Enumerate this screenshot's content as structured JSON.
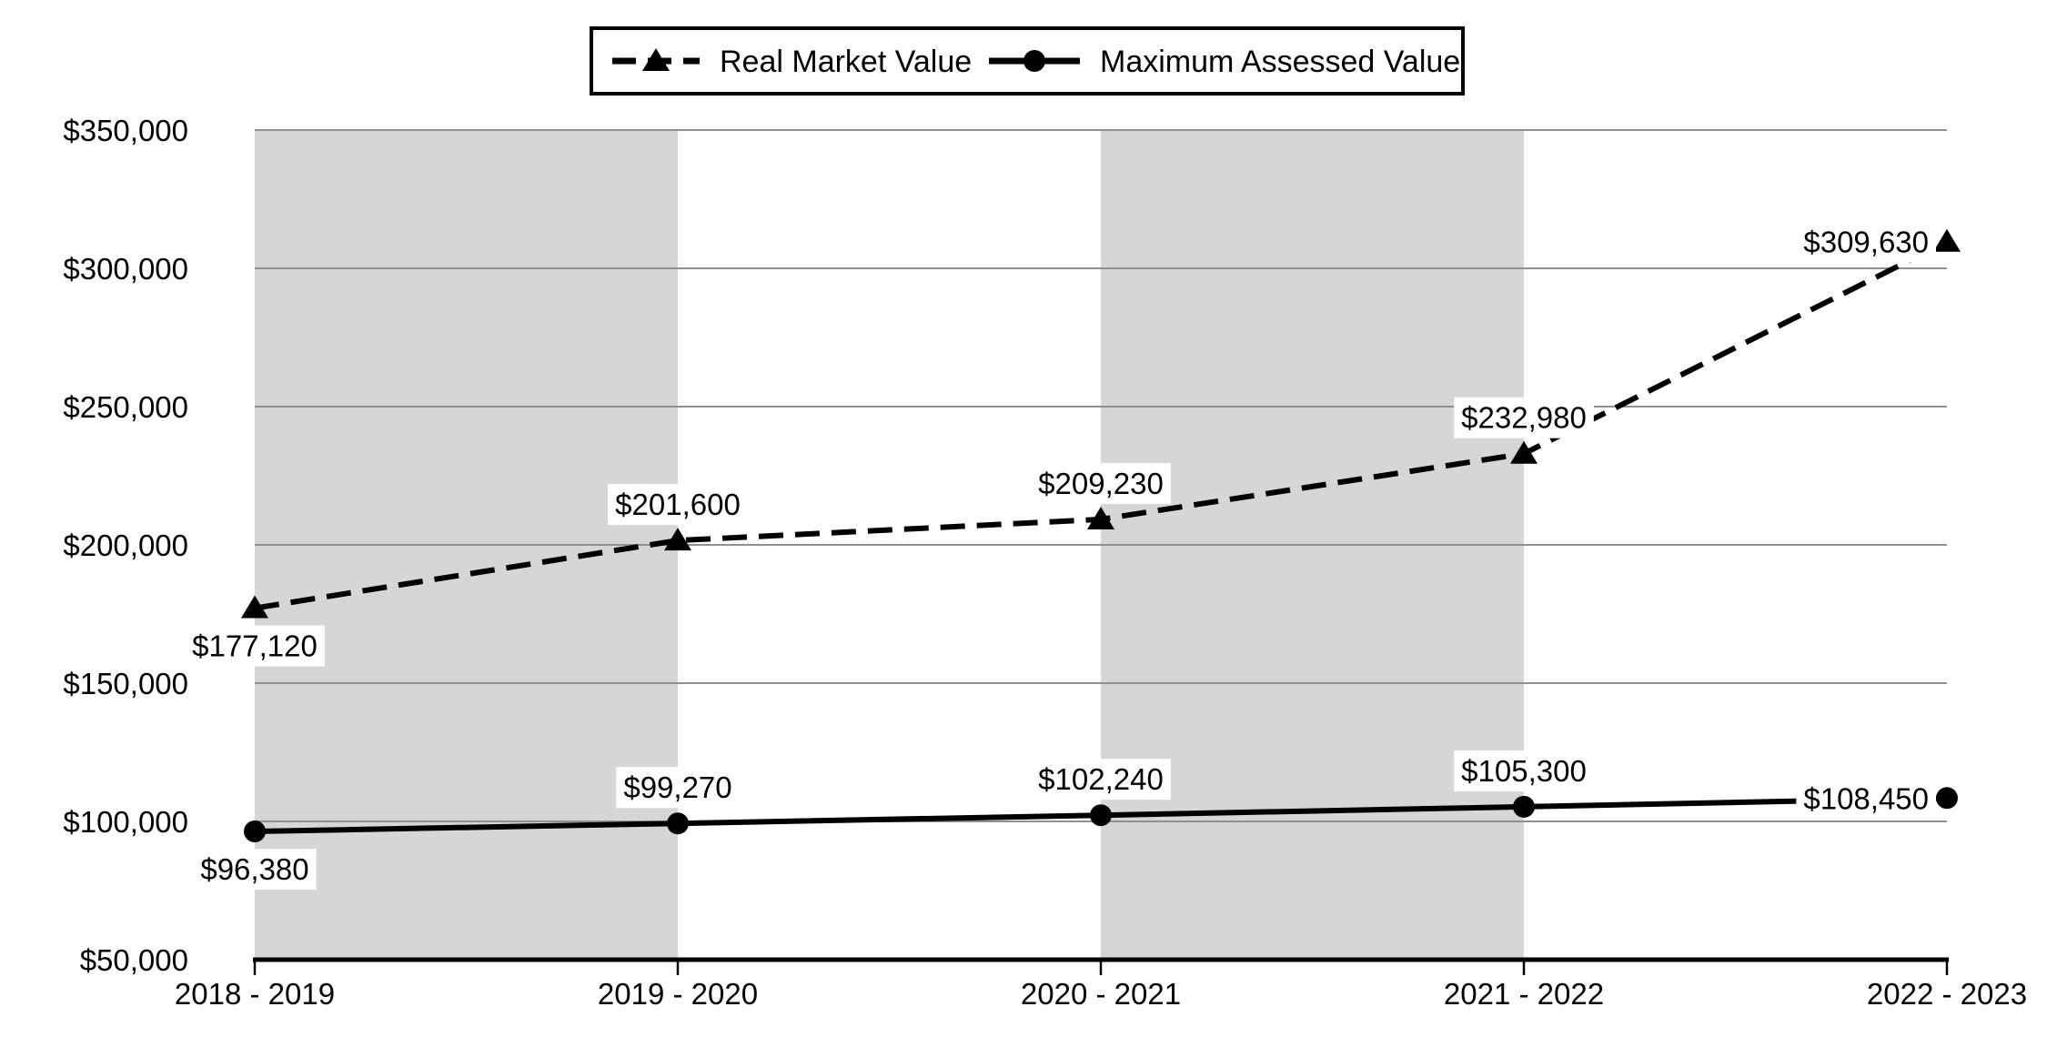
{
  "chart_data": {
    "type": "line",
    "title": "",
    "categories": [
      "2018 - 2019",
      "2019 - 2020",
      "2020 - 2021",
      "2021 - 2022",
      "2022 - 2023"
    ],
    "series": [
      {
        "name": "Real Market Value",
        "values": [
          177120,
          201600,
          209230,
          232980,
          309630
        ],
        "labels": [
          "$177,120",
          "$201,600",
          "$209,230",
          "$232,980",
          "$309,630"
        ],
        "label_placements": [
          "below",
          "above",
          "above",
          "above",
          "left"
        ],
        "marker": "triangle",
        "line_style": "dashed"
      },
      {
        "name": "Maximum Assessed Value",
        "values": [
          96380,
          99270,
          102240,
          105300,
          108450
        ],
        "labels": [
          "$96,380",
          "$99,270",
          "$102,240",
          "$105,300",
          "$108,450"
        ],
        "label_placements": [
          "below",
          "above",
          "above",
          "above",
          "left"
        ],
        "marker": "circle",
        "line_style": "solid"
      }
    ],
    "y_axis": {
      "min": 50000,
      "max": 350000,
      "step": 50000,
      "tick_labels": [
        "$50,000",
        "$100,000",
        "$150,000",
        "$200,000",
        "$250,000",
        "$300,000",
        "$350,000"
      ]
    },
    "legend": {
      "position": "top",
      "entries": [
        "Real Market Value",
        "Maximum Assessed Value"
      ]
    },
    "grid": true,
    "band_fill_between": [
      [
        0,
        1
      ],
      [
        2,
        3
      ]
    ],
    "colors": {
      "series": "#000000",
      "band": "#d6d6d6",
      "gridline": "#909090",
      "axis": "#000000",
      "background": "#ffffff",
      "label_background": "#ffffff"
    }
  }
}
